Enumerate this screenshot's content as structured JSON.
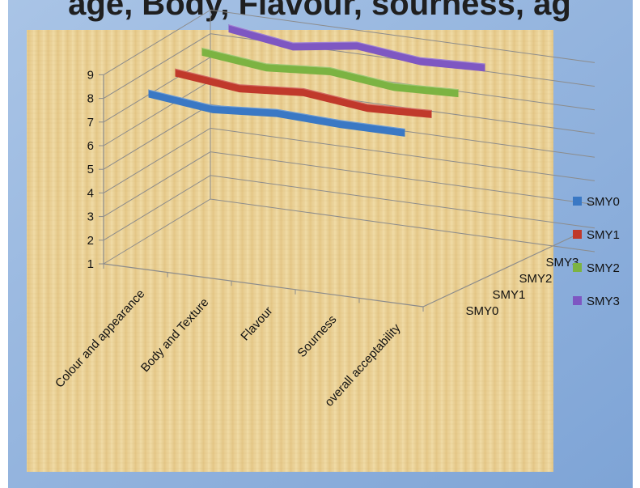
{
  "chart_data": {
    "type": "line",
    "title": "",
    "title_partial": "age, Body, Flavour, sourness, ag",
    "categories": [
      "Colour and appearance",
      "Body and Texture",
      "Flavour",
      "Sourness",
      "overall acceptability"
    ],
    "depth_labels": [
      "SMY0",
      "SMY1",
      "SMY2",
      "SMY3"
    ],
    "ylim": [
      1,
      9
    ],
    "yticks": [
      "1",
      "2",
      "3",
      "4",
      "5",
      "6",
      "7",
      "8",
      "9"
    ],
    "grid": true,
    "legend_position": "right",
    "series": [
      {
        "name": "SMY0",
        "color": "#3a78c4",
        "values": [
          8.2,
          7.9,
          8.1,
          8.0,
          8.0
        ]
      },
      {
        "name": "SMY1",
        "color": "#c0392b",
        "values": [
          8.4,
          8.1,
          8.3,
          8.0,
          8.1
        ]
      },
      {
        "name": "SMY2",
        "color": "#7cb342",
        "values": [
          8.6,
          8.3,
          8.5,
          8.2,
          8.3
        ]
      },
      {
        "name": "SMY3",
        "color": "#7e57c2",
        "values": [
          8.9,
          8.5,
          8.9,
          8.6,
          8.7
        ]
      }
    ]
  }
}
